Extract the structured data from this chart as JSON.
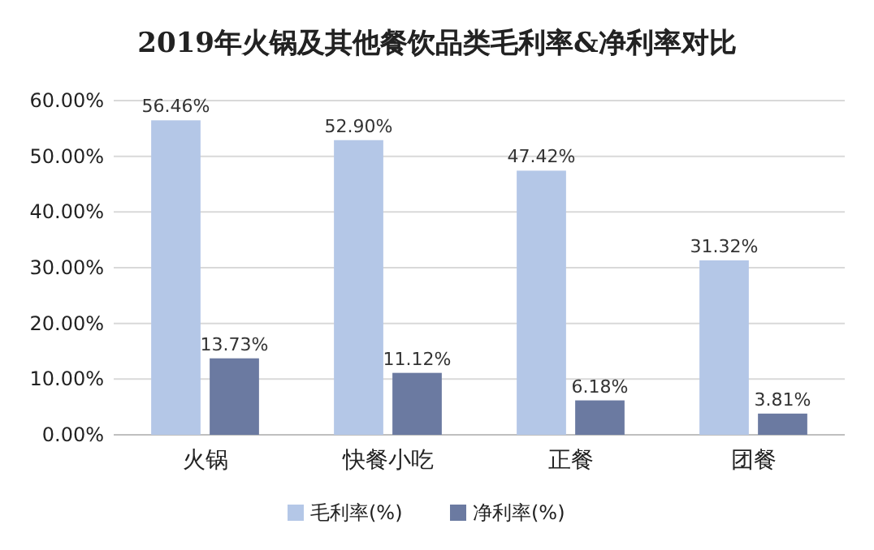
{
  "chart_data": {
    "type": "bar",
    "title": "2019年火锅及其他餐饮品类毛利率&净利率对比",
    "categories": [
      "火锅",
      "快餐小吃",
      "正餐",
      "团餐"
    ],
    "series": [
      {
        "name": "毛利率(%)",
        "color": "#b4c7e7",
        "values": [
          56.46,
          52.9,
          47.42,
          31.32
        ],
        "value_labels": [
          "56.46%",
          "52.90%",
          "47.42%",
          "31.32%"
        ]
      },
      {
        "name": "净利率(%)",
        "color": "#6b7aa1",
        "values": [
          13.73,
          11.12,
          6.18,
          3.81
        ],
        "value_labels": [
          "13.73%",
          "11.12%",
          "6.18%",
          "3.81%"
        ]
      }
    ],
    "ylim": [
      0,
      60
    ],
    "yticks": [
      {
        "value": 0,
        "label": "0.00%"
      },
      {
        "value": 10,
        "label": "10.00%"
      },
      {
        "value": 20,
        "label": "20.00%"
      },
      {
        "value": 30,
        "label": "30.00%"
      },
      {
        "value": 40,
        "label": "40.00%"
      },
      {
        "value": 50,
        "label": "50.00%"
      },
      {
        "value": 60,
        "label": "60.00%"
      }
    ],
    "grid": "y",
    "legend": "bottom"
  }
}
